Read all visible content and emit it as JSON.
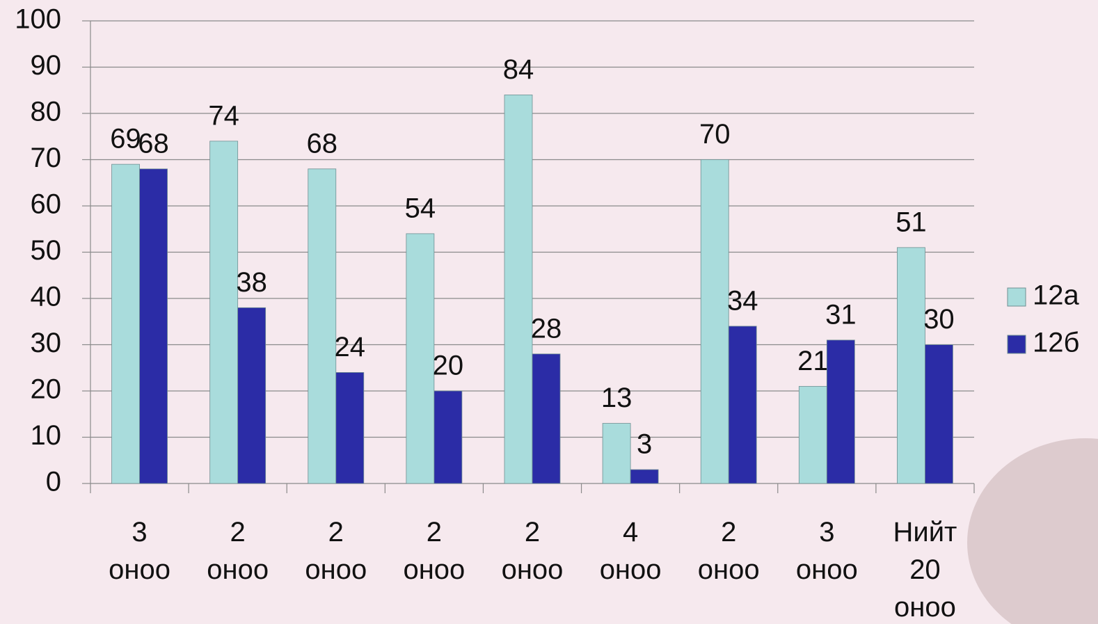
{
  "chart_data": {
    "type": "bar",
    "categories": [
      "3 оноо",
      "2 оноо",
      "2 оноо",
      "2 оноо",
      "2 оноо",
      "4 оноо",
      "2 оноо",
      "3 оноо",
      "Нийт 20 оноо"
    ],
    "series": [
      {
        "name": "12а",
        "color": "#a9dcdc",
        "values": [
          69,
          74,
          68,
          54,
          84,
          13,
          70,
          21,
          51
        ]
      },
      {
        "name": "12б",
        "color": "#2b2ca6",
        "values": [
          68,
          38,
          24,
          20,
          28,
          3,
          34,
          31,
          30
        ]
      }
    ],
    "ylim": [
      0,
      100
    ],
    "yticks": [
      0,
      10,
      20,
      30,
      40,
      50,
      60,
      70,
      80,
      90,
      100
    ],
    "grid": true,
    "legend": "right"
  }
}
